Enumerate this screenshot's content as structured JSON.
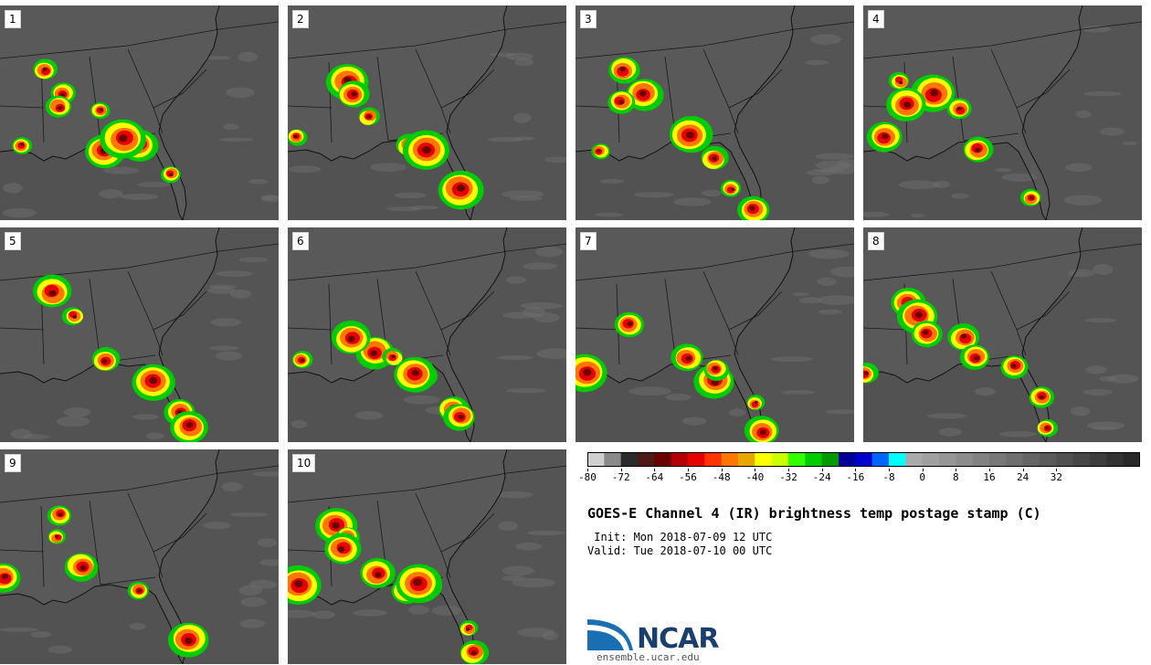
{
  "title": "GOES-E Channel 4 (IR) brightness temp postage stamp (C)",
  "init": " Init: Mon 2018-07-09 12 UTC",
  "valid": "Valid: Tue 2018-07-10 00 UTC",
  "logo_text": "NCAR",
  "logo_url": "ensemble.ucar.edu",
  "panels": [
    {
      "label": "1"
    },
    {
      "label": "2"
    },
    {
      "label": "3"
    },
    {
      "label": "4"
    },
    {
      "label": "5"
    },
    {
      "label": "6"
    },
    {
      "label": "7"
    },
    {
      "label": "8"
    },
    {
      "label": "9"
    },
    {
      "label": "10"
    }
  ],
  "colorbar": {
    "colors": [
      "#cfcfcf",
      "#8a8a8a",
      "#2b2b2b",
      "#4d1a1a",
      "#6b0000",
      "#b30000",
      "#e60000",
      "#ff3300",
      "#ff7700",
      "#e6a800",
      "#ffff00",
      "#ccff00",
      "#33ff00",
      "#00cc00",
      "#009900",
      "#000099",
      "#0000cc",
      "#0066ff",
      "#00ffff",
      "#aaaaaa",
      "#a0a0a0",
      "#969696",
      "#8c8c8c",
      "#828282",
      "#787878",
      "#6e6e6e",
      "#646464",
      "#5a5a5a",
      "#505050",
      "#464646",
      "#3c3c3c",
      "#323232",
      "#282828"
    ],
    "ticks": [
      "-80",
      "-72",
      "-64",
      "-56",
      "-48",
      "-40",
      "-32",
      "-24",
      "-16",
      "-8",
      "0",
      "8",
      "16",
      "24",
      "32"
    ]
  }
}
